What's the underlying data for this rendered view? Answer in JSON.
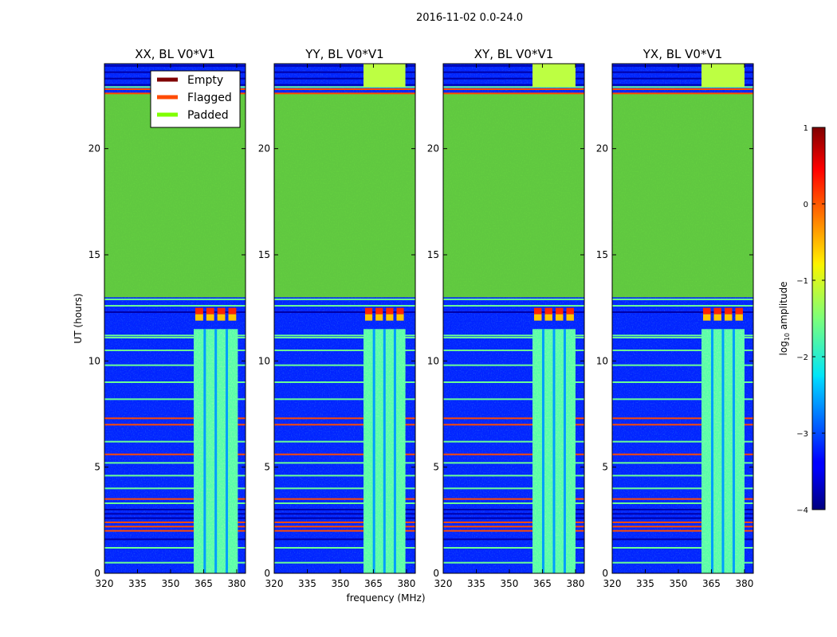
{
  "figure": {
    "suptitle": "2016-11-02 0.0-24.0",
    "xlabel": "frequency (MHz)",
    "ylabel": "UT (hours)"
  },
  "colorbar": {
    "label": "log10 amplitude",
    "label_base": "log",
    "label_sub": "10",
    "label_rest": " amplitude",
    "range": [
      -4,
      1
    ],
    "ticks": [
      1,
      0,
      -1,
      -2,
      -3,
      -4
    ],
    "tick_labels": [
      "1",
      "0",
      "−1",
      "−2",
      "−3",
      "−4"
    ],
    "colormap": "jet"
  },
  "legend": {
    "placement": "upper-right of first panel",
    "items": [
      {
        "label": "Empty",
        "color": "#7f0000"
      },
      {
        "label": "Flagged",
        "color": "#ff4a00"
      },
      {
        "label": "Padded",
        "color": "#80ff00"
      }
    ]
  },
  "chart_data": {
    "type": "heatmap",
    "x_ticks": [
      320,
      335,
      350,
      365,
      380
    ],
    "x_tick_labels": [
      "320",
      "335",
      "350",
      "365",
      "380"
    ],
    "xlim": [
      320,
      384
    ],
    "y_ticks": [
      0,
      5,
      10,
      15,
      20
    ],
    "y_tick_labels": [
      "0",
      "5",
      "10",
      "15",
      "20"
    ],
    "ylim": [
      0,
      24
    ],
    "panels": [
      {
        "title": "XX, BL V0*V1",
        "band_mhz": [
          360.5,
          380.5
        ],
        "band_top_hours": 11.5,
        "band_extends_to_top": false
      },
      {
        "title": "YY, BL V0*V1",
        "band_mhz": [
          360.5,
          379.5
        ],
        "band_top_hours": 11.5,
        "band_extends_to_top": true
      },
      {
        "title": "XY, BL V0*V1",
        "band_mhz": [
          360.5,
          380.0
        ],
        "band_top_hours": 11.5,
        "band_extends_to_top": true
      },
      {
        "title": "YX, BL V0*V1",
        "band_mhz": [
          360.5,
          380.0
        ],
        "band_top_hours": 11.5,
        "band_extends_to_top": true
      }
    ],
    "padded_region_hours": [
      13.0,
      22.6
    ],
    "flagged_lines_hours": [
      22.6,
      22.8,
      2.0,
      2.2,
      2.4,
      7.3,
      7.0,
      5.6,
      3.5
    ],
    "padded_lines_hours": [
      22.9,
      11.2,
      11.1,
      1.2,
      0.5,
      3.3,
      4.0,
      4.6,
      5.2,
      6.2,
      8.2,
      9.0,
      9.8,
      10.5,
      12.6,
      12.9
    ],
    "dark_lines_hours": [
      23.0,
      23.3,
      23.6,
      23.9,
      12.3,
      1.6,
      2.6,
      2.8,
      3.0
    ],
    "flagged_bright_block_hours": [
      11.9,
      12.5
    ],
    "notes": "background log10 amplitude about -3 (blue); band near 365-380 MHz about -1.5 to -1"
  }
}
